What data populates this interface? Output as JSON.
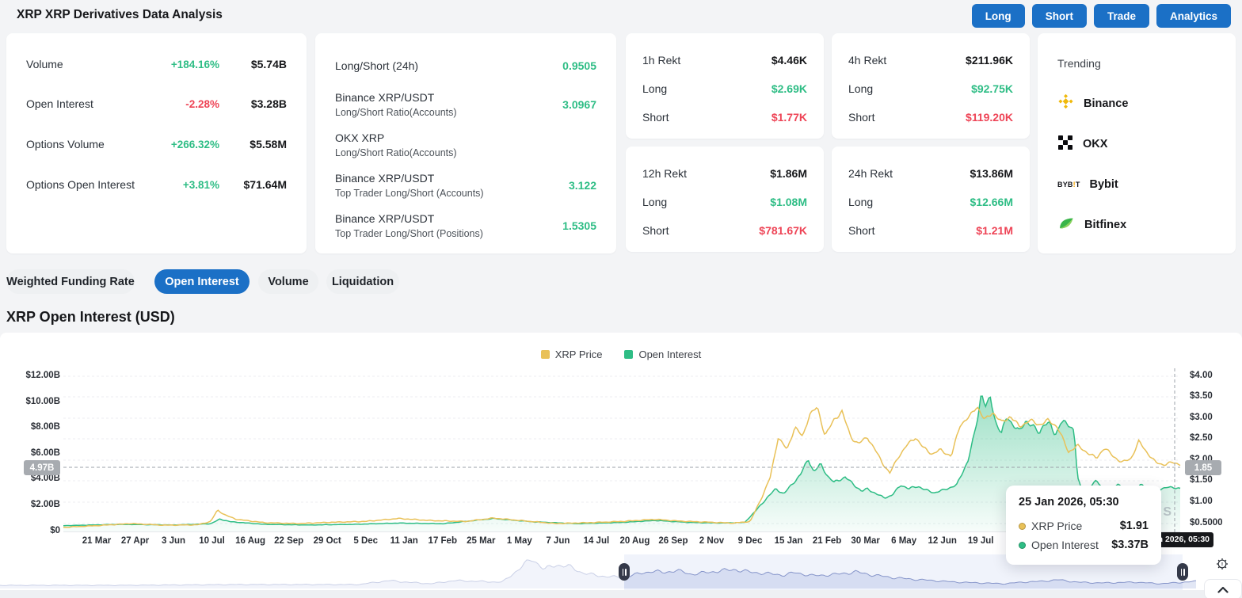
{
  "header": {
    "title": "XRP XRP Derivatives Data Analysis",
    "buttons": [
      {
        "label": "Long"
      },
      {
        "label": "Short"
      },
      {
        "label": "Trade"
      },
      {
        "label": "Analytics"
      }
    ],
    "accent_color": "#1b70c6"
  },
  "stats_card": {
    "rows": [
      {
        "label": "Volume",
        "change": "+184.16%",
        "direction": "up",
        "value": "$5.74B"
      },
      {
        "label": "Open Interest",
        "change": "-2.28%",
        "direction": "down",
        "value": "$3.28B"
      },
      {
        "label": "Options Volume",
        "change": "+266.32%",
        "direction": "up",
        "value": "$5.58M"
      },
      {
        "label": "Options Open Interest",
        "change": "+3.81%",
        "direction": "up",
        "value": "$71.64M"
      }
    ]
  },
  "ratio_card": {
    "rows": [
      {
        "label": "Long/Short (24h)",
        "sub": "",
        "value": "0.9505"
      },
      {
        "label": "Binance XRP/USDT",
        "sub": "Long/Short Ratio(Accounts)",
        "value": "3.0967"
      },
      {
        "label": "OKX XRP",
        "sub": "Long/Short Ratio(Accounts)",
        "value": ""
      },
      {
        "label": "Binance XRP/USDT",
        "sub": "Top Trader Long/Short (Accounts)",
        "value": "3.122"
      },
      {
        "label": "Binance XRP/USDT",
        "sub": "Top Trader Long/Short (Positions)",
        "value": "1.5305"
      }
    ]
  },
  "rekt": {
    "long_label": "Long",
    "short_label": "Short",
    "cards": [
      {
        "period": "1h Rekt",
        "total": "$4.46K",
        "long": "$2.69K",
        "short": "$1.77K"
      },
      {
        "period": "4h Rekt",
        "total": "$211.96K",
        "long": "$92.75K",
        "short": "$119.20K"
      },
      {
        "period": "12h Rekt",
        "total": "$1.86M",
        "long": "$1.08M",
        "short": "$781.67K"
      },
      {
        "period": "24h Rekt",
        "total": "$13.86M",
        "long": "$12.66M",
        "short": "$1.21M"
      }
    ]
  },
  "trending": {
    "title": "Trending",
    "items": [
      {
        "name": "Binance",
        "icon": "binance-logo"
      },
      {
        "name": "OKX",
        "icon": "okx-logo"
      },
      {
        "name": "Bybit",
        "icon": "bybit-logo"
      },
      {
        "name": "Bitfinex",
        "icon": "bitfinex-logo"
      }
    ]
  },
  "tabs": [
    {
      "label": "Weighted Funding Rate",
      "active": false
    },
    {
      "label": "Open Interest",
      "active": true
    },
    {
      "label": "Volume",
      "active": false
    },
    {
      "label": "Liquidation",
      "active": false
    }
  ],
  "chart_section": {
    "title": "XRP Open Interest (USD)",
    "watermark": "COINGLASS",
    "legend": [
      {
        "label": "XRP Price",
        "color": "#e9c158"
      },
      {
        "label": "Open Interest",
        "color": "#2ebd85"
      }
    ],
    "tooltip": {
      "date": "25 Jan 2026, 05:30",
      "rows": [
        {
          "label": "XRP Price",
          "value": "$1.91",
          "color": "#e9c158"
        },
        {
          "label": "Open Interest",
          "value": "$3.37B",
          "color": "#2ebd85"
        }
      ]
    },
    "crosshair": {
      "left_badge": "4.97B",
      "right_badge": "1.85",
      "date_badge": "25 Jan 2026, 05:30"
    }
  },
  "chart_data": {
    "type": "area",
    "title": "XRP Open Interest (USD)",
    "left_axis": {
      "name": "Open Interest (USD)",
      "ticks": [
        "$12.00B",
        "$10.00B",
        "$8.00B",
        "$6.00B",
        "$4.00B",
        "$2.00B",
        "$0"
      ],
      "range_billions": [
        0,
        12
      ]
    },
    "right_axis": {
      "name": "XRP Price",
      "ticks": [
        "$4.00",
        "$3.50",
        "$3.00",
        "$2.50",
        "$2.00",
        "$1.50",
        "$1.00",
        "$0.5000"
      ],
      "range_usd": [
        0.5,
        4.0
      ]
    },
    "x_labels": [
      "21 Mar",
      "27 Apr",
      "3 Jun",
      "10 Jul",
      "16 Aug",
      "22 Sep",
      "29 Oct",
      "5 Dec",
      "11 Jan",
      "17 Feb",
      "25 Mar",
      "1 May",
      "7 Jun",
      "14 Jul",
      "20 Aug",
      "26 Sep",
      "2 Nov",
      "9 Dec",
      "15 Jan",
      "21 Feb",
      "30 Mar",
      "6 May",
      "12 Jun",
      "19 Jul"
    ],
    "grid": "dashed-horizontal",
    "legend_position": "top-center",
    "series": [
      {
        "name": "XRP Price",
        "type": "line",
        "axis": "right",
        "color": "#e9c158",
        "points": [
          [
            0,
            0.41
          ],
          [
            0.03,
            0.45
          ],
          [
            0.06,
            0.5
          ],
          [
            0.09,
            0.46
          ],
          [
            0.12,
            0.47
          ],
          [
            0.132,
            0.55
          ],
          [
            0.138,
            0.82
          ],
          [
            0.145,
            0.7
          ],
          [
            0.155,
            0.6
          ],
          [
            0.18,
            0.52
          ],
          [
            0.21,
            0.5
          ],
          [
            0.24,
            0.53
          ],
          [
            0.27,
            0.55
          ],
          [
            0.3,
            0.62
          ],
          [
            0.33,
            0.57
          ],
          [
            0.36,
            0.55
          ],
          [
            0.385,
            0.63
          ],
          [
            0.41,
            0.57
          ],
          [
            0.44,
            0.5
          ],
          [
            0.47,
            0.52
          ],
          [
            0.5,
            0.55
          ],
          [
            0.53,
            0.6
          ],
          [
            0.55,
            0.56
          ],
          [
            0.58,
            0.53
          ],
          [
            0.6,
            0.51
          ],
          [
            0.615,
            0.55
          ],
          [
            0.625,
            1.1
          ],
          [
            0.633,
            1.6
          ],
          [
            0.64,
            2.55
          ],
          [
            0.648,
            2.25
          ],
          [
            0.655,
            2.8
          ],
          [
            0.662,
            2.55
          ],
          [
            0.668,
            3.1
          ],
          [
            0.675,
            3.25
          ],
          [
            0.682,
            2.6
          ],
          [
            0.69,
            2.95
          ],
          [
            0.697,
            3.18
          ],
          [
            0.705,
            2.55
          ],
          [
            0.712,
            2.4
          ],
          [
            0.72,
            2.55
          ],
          [
            0.728,
            2.2
          ],
          [
            0.733,
            1.95
          ],
          [
            0.74,
            1.7
          ],
          [
            0.748,
            2.1
          ],
          [
            0.755,
            2.35
          ],
          [
            0.763,
            2.55
          ],
          [
            0.77,
            2.3
          ],
          [
            0.778,
            2.15
          ],
          [
            0.785,
            2.25
          ],
          [
            0.795,
            2.1
          ],
          [
            0.803,
            2.85
          ],
          [
            0.812,
            3.05
          ],
          [
            0.818,
            3.3
          ],
          [
            0.825,
            2.95
          ],
          [
            0.832,
            3.15
          ],
          [
            0.84,
            2.9
          ],
          [
            0.848,
            3.05
          ],
          [
            0.856,
            2.8
          ],
          [
            0.865,
            2.95
          ],
          [
            0.874,
            2.85
          ],
          [
            0.882,
            2.95
          ],
          [
            0.89,
            2.8
          ],
          [
            0.9,
            2.2
          ],
          [
            0.908,
            2.35
          ],
          [
            0.916,
            2.2
          ],
          [
            0.925,
            2.05
          ],
          [
            0.932,
            2.3
          ],
          [
            0.94,
            2.1
          ],
          [
            0.948,
            1.95
          ],
          [
            0.956,
            2.05
          ],
          [
            0.963,
            2.45
          ],
          [
            0.97,
            2.2
          ],
          [
            0.978,
            1.95
          ],
          [
            0.985,
            1.9
          ],
          [
            0.993,
            1.95
          ],
          [
            1,
            1.91
          ]
        ]
      },
      {
        "name": "Open Interest",
        "type": "area",
        "axis": "left",
        "color": "#2ebd85",
        "points": [
          [
            0,
            0.45
          ],
          [
            0.05,
            0.55
          ],
          [
            0.1,
            0.5
          ],
          [
            0.132,
            0.6
          ],
          [
            0.14,
            0.95
          ],
          [
            0.15,
            0.75
          ],
          [
            0.18,
            0.55
          ],
          [
            0.22,
            0.5
          ],
          [
            0.26,
            0.55
          ],
          [
            0.3,
            0.65
          ],
          [
            0.34,
            0.6
          ],
          [
            0.385,
            1
          ],
          [
            0.42,
            0.75
          ],
          [
            0.46,
            0.6
          ],
          [
            0.5,
            0.7
          ],
          [
            0.53,
            0.85
          ],
          [
            0.56,
            0.7
          ],
          [
            0.59,
            0.65
          ],
          [
            0.61,
            0.7
          ],
          [
            0.62,
            1.6
          ],
          [
            0.63,
            2.6
          ],
          [
            0.638,
            3.3
          ],
          [
            0.645,
            2.9
          ],
          [
            0.652,
            3.6
          ],
          [
            0.66,
            4.4
          ],
          [
            0.667,
            5.6
          ],
          [
            0.672,
            4.6
          ],
          [
            0.678,
            5.2
          ],
          [
            0.685,
            4.2
          ],
          [
            0.69,
            3.8
          ],
          [
            0.7,
            4.2
          ],
          [
            0.708,
            3.6
          ],
          [
            0.715,
            3.1
          ],
          [
            0.72,
            3.3
          ],
          [
            0.728,
            2.9
          ],
          [
            0.735,
            2.6
          ],
          [
            0.742,
            2.8
          ],
          [
            0.75,
            3.6
          ],
          [
            0.757,
            3.3
          ],
          [
            0.765,
            3.5
          ],
          [
            0.772,
            3.2
          ],
          [
            0.78,
            3
          ],
          [
            0.788,
            3.2
          ],
          [
            0.8,
            3.6
          ],
          [
            0.81,
            5.5
          ],
          [
            0.815,
            7.2
          ],
          [
            0.819,
            9
          ],
          [
            0.822,
            10.8
          ],
          [
            0.826,
            9.6
          ],
          [
            0.83,
            10.3
          ],
          [
            0.835,
            8.4
          ],
          [
            0.84,
            7.6
          ],
          [
            0.845,
            8.9
          ],
          [
            0.85,
            8.3
          ],
          [
            0.856,
            7.7
          ],
          [
            0.862,
            8.6
          ],
          [
            0.868,
            8.1
          ],
          [
            0.874,
            7.6
          ],
          [
            0.878,
            8.4
          ],
          [
            0.884,
            8.2
          ],
          [
            0.888,
            7.4
          ],
          [
            0.893,
            8.5
          ],
          [
            0.898,
            8.3
          ],
          [
            0.905,
            7.9
          ],
          [
            0.908,
            4.2
          ],
          [
            0.912,
            3.1
          ],
          [
            0.918,
            3.4
          ],
          [
            0.925,
            3.9
          ],
          [
            0.93,
            3.4
          ],
          [
            0.938,
            3.2
          ],
          [
            0.945,
            3.7
          ],
          [
            0.95,
            3.3
          ],
          [
            0.958,
            3.1
          ],
          [
            0.965,
            3.6
          ],
          [
            0.972,
            3.3
          ],
          [
            0.98,
            3.1
          ],
          [
            0.988,
            3.5
          ],
          [
            0.995,
            3.3
          ],
          [
            1,
            3.37
          ]
        ]
      }
    ],
    "navigator_points": [
      [
        0,
        4
      ],
      [
        0.1,
        4
      ],
      [
        0.2,
        5
      ],
      [
        0.3,
        5
      ],
      [
        0.325,
        10
      ],
      [
        0.34,
        8
      ],
      [
        0.36,
        6
      ],
      [
        0.38,
        10
      ],
      [
        0.4,
        9
      ],
      [
        0.42,
        8
      ],
      [
        0.445,
        38
      ],
      [
        0.455,
        24
      ],
      [
        0.465,
        30
      ],
      [
        0.475,
        28
      ],
      [
        0.487,
        20
      ],
      [
        0.5,
        16
      ],
      [
        0.52,
        14
      ],
      [
        0.545,
        22
      ],
      [
        0.555,
        20
      ],
      [
        0.565,
        23
      ],
      [
        0.578,
        18
      ],
      [
        0.59,
        20
      ],
      [
        0.6,
        22
      ],
      [
        0.615,
        24
      ],
      [
        0.625,
        21
      ],
      [
        0.64,
        19
      ],
      [
        0.655,
        17
      ],
      [
        0.665,
        20
      ],
      [
        0.68,
        16
      ],
      [
        0.7,
        18
      ],
      [
        0.715,
        21
      ],
      [
        0.73,
        17
      ],
      [
        0.745,
        14
      ],
      [
        0.76,
        12
      ],
      [
        0.78,
        10
      ],
      [
        0.8,
        8
      ],
      [
        0.82,
        7
      ],
      [
        0.84,
        6
      ],
      [
        0.855,
        8
      ],
      [
        0.87,
        9
      ],
      [
        0.885,
        11
      ],
      [
        0.9,
        8
      ],
      [
        0.92,
        7
      ],
      [
        0.95,
        8
      ],
      [
        0.97,
        6
      ],
      [
        1,
        9
      ]
    ]
  }
}
